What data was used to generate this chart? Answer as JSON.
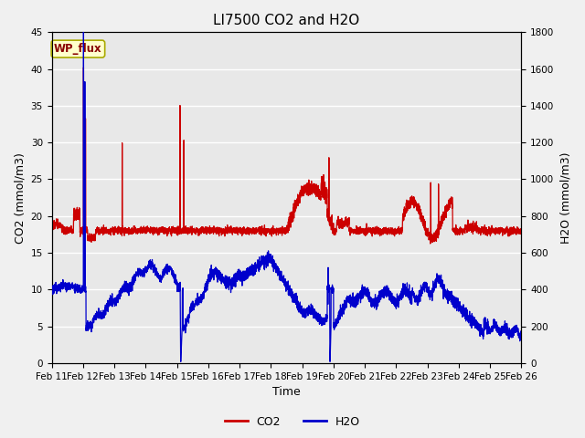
{
  "title": "LI7500 CO2 and H2O",
  "xlabel": "Time",
  "ylabel_left": "CO2 (mmol/m3)",
  "ylabel_right": "H2O (mmol/m3)",
  "ylim_left": [
    0,
    45
  ],
  "ylim_right": [
    0,
    1800
  ],
  "yticks_left": [
    0,
    5,
    10,
    15,
    20,
    25,
    30,
    35,
    40,
    45
  ],
  "yticks_right": [
    0,
    200,
    400,
    600,
    800,
    1000,
    1200,
    1400,
    1600,
    1800
  ],
  "xtick_labels": [
    "Feb 11",
    "Feb 12",
    "Feb 13",
    "Feb 14",
    "Feb 15",
    "Feb 16",
    "Feb 17",
    "Feb 18",
    "Feb 19",
    "Feb 20",
    "Feb 21",
    "Feb 22",
    "Feb 23",
    "Feb 24",
    "Feb 25",
    "Feb 26"
  ],
  "co2_color": "#cc0000",
  "h2o_color": "#0000cc",
  "fig_bg_color": "#f0f0f0",
  "plot_bg_color": "#e8e8e8",
  "annotation_text": "WP_flux",
  "legend_labels": [
    "CO2",
    "H2O"
  ],
  "title_fontsize": 11,
  "axis_fontsize": 9,
  "tick_fontsize": 7.5,
  "linewidth": 0.9
}
